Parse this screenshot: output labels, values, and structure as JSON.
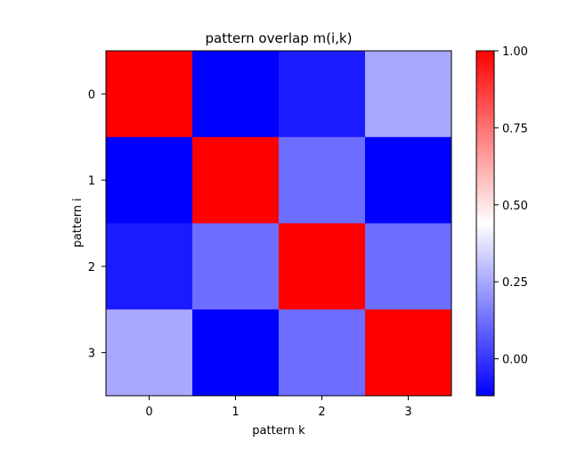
{
  "chart_data": {
    "type": "heatmap",
    "title": "pattern overlap m(i,k)",
    "xlabel": "pattern k",
    "ylabel": "pattern i",
    "x_categories": [
      "0",
      "1",
      "2",
      "3"
    ],
    "y_categories": [
      "0",
      "1",
      "2",
      "3"
    ],
    "values": [
      [
        1.0,
        -0.12,
        -0.06,
        0.25
      ],
      [
        -0.12,
        1.0,
        0.12,
        -0.12
      ],
      [
        -0.06,
        0.12,
        1.0,
        0.12
      ],
      [
        0.25,
        -0.12,
        0.12,
        1.0
      ]
    ],
    "colorbar": {
      "colormap": "bwr",
      "vmin": -0.12,
      "vmax": 1.0,
      "ticks": [
        0.0,
        0.25,
        0.5,
        0.75,
        1.0
      ],
      "tick_labels": [
        "0.00",
        "0.25",
        "0.50",
        "0.75",
        "1.00"
      ],
      "colors": [
        "#0000ff",
        "#ffffff",
        "#ff0000"
      ]
    },
    "grid": false
  }
}
